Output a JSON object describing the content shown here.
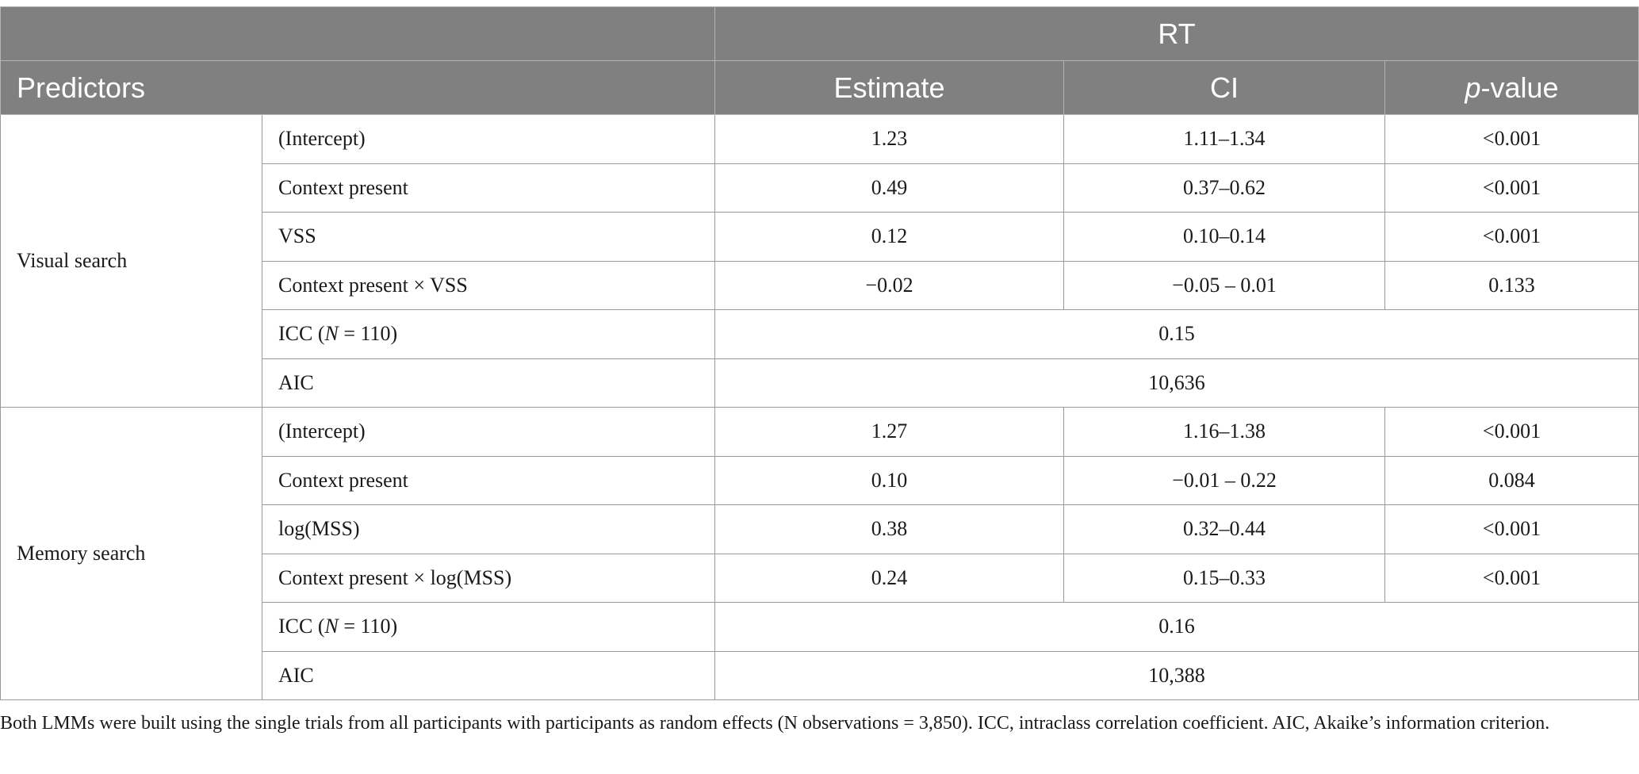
{
  "header": {
    "outcome": "RT",
    "predictors_label": "Predictors",
    "col_estimate": "Estimate",
    "col_ci": "CI",
    "col_p_italic": "p",
    "col_p_rest": "-value"
  },
  "visual": {
    "label": "Visual search",
    "rows": [
      {
        "pred": "(Intercept)",
        "est": "1.23",
        "ci": "1.11–1.34",
        "p": "<0.001"
      },
      {
        "pred": "Context present",
        "est": "0.49",
        "ci": "0.37–0.62",
        "p": "<0.001"
      },
      {
        "pred": "VSS",
        "est": "0.12",
        "ci": "0.10–0.14",
        "p": "<0.001"
      },
      {
        "pred": "Context present × VSS",
        "est": "−0.02",
        "ci": "−0.05 – 0.01",
        "p": "0.133"
      }
    ],
    "icc_pre": "ICC (",
    "icc_n": "N",
    "icc_post": " = 110)",
    "icc_value": "0.15",
    "aic_label": "AIC",
    "aic_value": "10,636"
  },
  "memory": {
    "label": "Memory search",
    "rows": [
      {
        "pred": "(Intercept)",
        "est": "1.27",
        "ci": "1.16–1.38",
        "p": "<0.001"
      },
      {
        "pred": "Context present",
        "est": "0.10",
        "ci": "−0.01 – 0.22",
        "p": "0.084"
      },
      {
        "pred": "log(MSS)",
        "est": "0.38",
        "ci": "0.32–0.44",
        "p": "<0.001"
      },
      {
        "pred": "Context present × log(MSS)",
        "est": "0.24",
        "ci": "0.15–0.33",
        "p": "<0.001"
      }
    ],
    "icc_pre": "ICC (",
    "icc_n": "N",
    "icc_post": " = 110)",
    "icc_value": "0.16",
    "aic_label": "AIC",
    "aic_value": "10,388"
  },
  "footnote": "Both LMMs were built using the single trials from all participants with participants as random effects (N observations = 3,850). ICC, intraclass correlation coefficient. AIC, Akaike’s information criterion.",
  "colors": {
    "header_bg": "#808080",
    "header_text": "#ffffff",
    "rule": "#9a9a9a"
  }
}
